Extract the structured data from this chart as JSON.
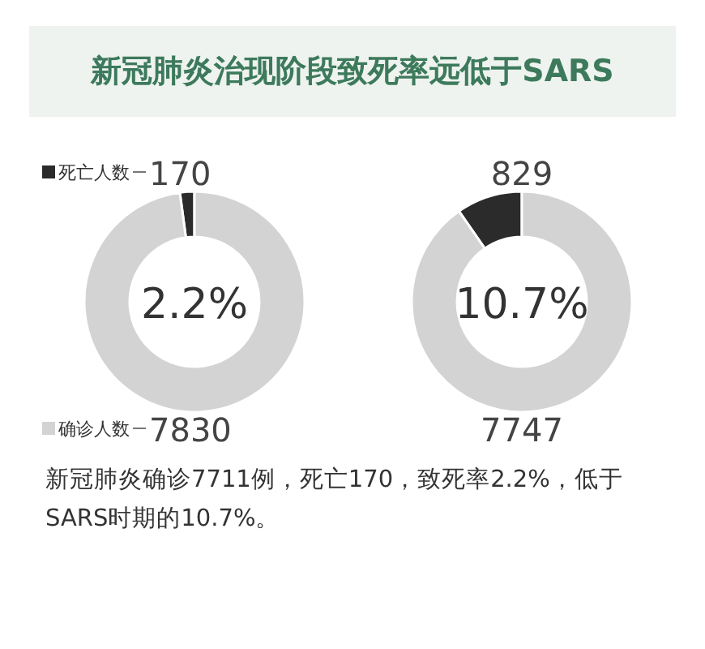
{
  "chart_data": [
    {
      "type": "donut",
      "title": "新冠肺炎治现阶段致死率远低于SARS",
      "categories": [
        "死亡人数",
        "确诊人数"
      ],
      "values": [
        170,
        7830
      ],
      "colors": [
        "#2b2b2b",
        "#d3d3d3"
      ],
      "data_labels": true,
      "legend": "left",
      "annotations": [
        "2.2%"
      ]
    },
    {
      "type": "donut",
      "categories": [
        null,
        null
      ],
      "values": [
        829,
        7747
      ],
      "colors": [
        "#2b2b2b",
        "#d3d3d3"
      ],
      "data_labels": true,
      "annotations": [
        "10.7%",
        "新冠肺炎确诊7711例，死亡170，致死率2.2%，低于SARS时期的10.7%。"
      ]
    }
  ]
}
